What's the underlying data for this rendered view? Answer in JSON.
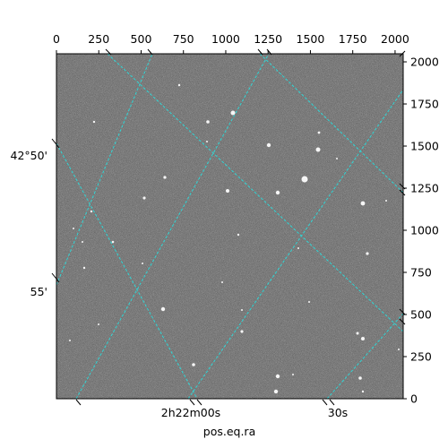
{
  "image": {
    "description_free": true,
    "colormap": "gray",
    "grid_color": "#2fd6d6"
  },
  "axes": {
    "x_pixel": {
      "range": [
        0,
        2048
      ],
      "ticks": [
        0,
        250,
        500,
        750,
        1000,
        1250,
        1500,
        1750,
        2000
      ],
      "tick_labels": [
        "0",
        "250",
        "500",
        "750",
        "1000",
        "1250",
        "1500",
        "1750",
        "2000"
      ]
    },
    "y_pixel": {
      "range": [
        0,
        2048
      ],
      "ticks": [
        0,
        250,
        500,
        750,
        1000,
        1250,
        1500,
        1750,
        2000
      ],
      "tick_labels": [
        "0",
        "250",
        "500",
        "750",
        "1000",
        "1250",
        "1500",
        "1750",
        "2000"
      ]
    },
    "ra": {
      "label": "pos.eq.ra",
      "tick_labels": [
        "2h22m00s",
        "30s"
      ]
    },
    "dec": {
      "tick_labels": [
        "42°50'",
        "55'"
      ]
    }
  }
}
